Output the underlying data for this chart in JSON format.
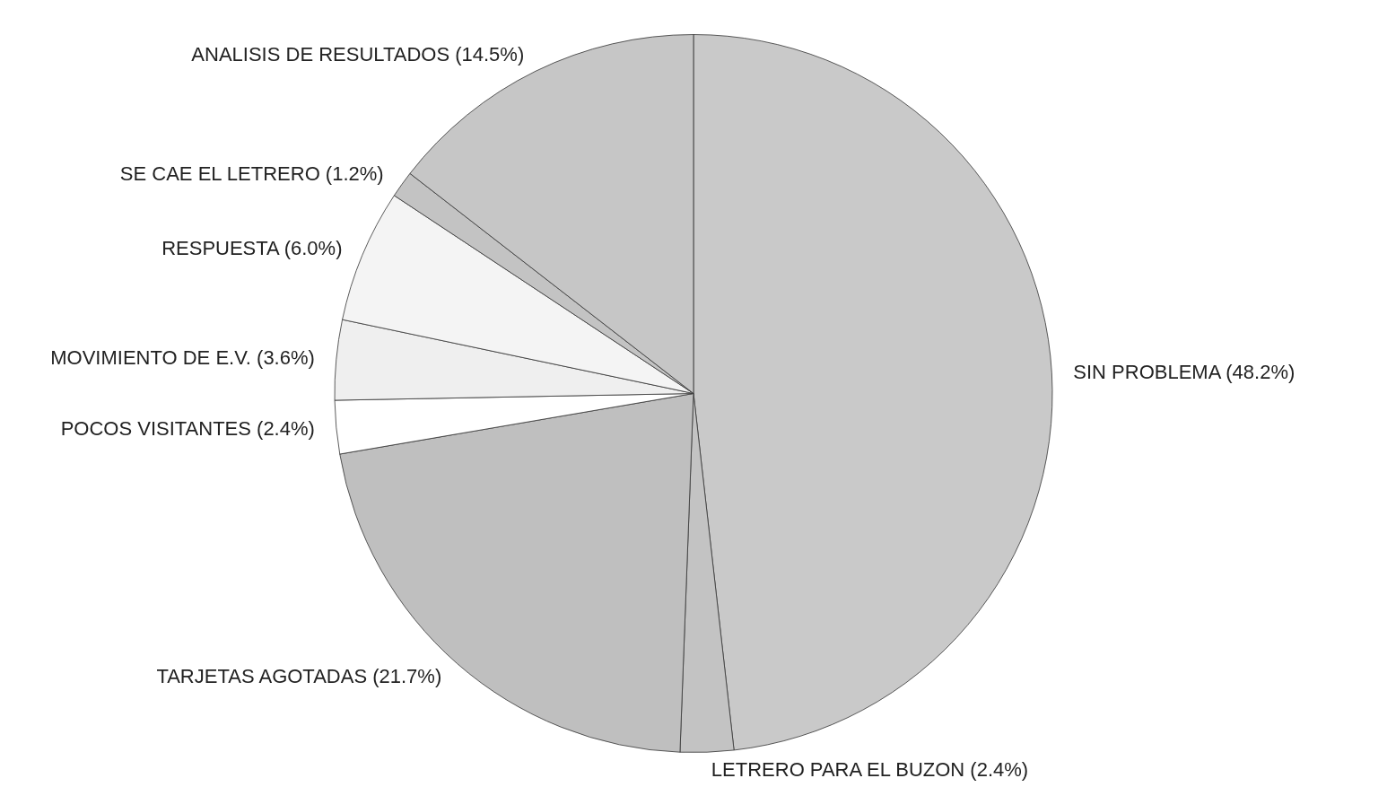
{
  "chart_data": {
    "type": "pie",
    "categories": [
      "SIN PROBLEMA (48.2%)",
      "LETRERO PARA EL BUZON (2.4%)",
      "TARJETAS AGOTADAS (21.7%)",
      "POCOS VISITANTES (2.4%)",
      "MOVIMIENTO DE E.V. (3.6%)",
      "RESPUESTA (6.0%)",
      "SE CAE EL LETRERO (1.2%)",
      "ANALISIS DE RESULTADOS (14.5%)"
    ],
    "values": [
      48.2,
      2.4,
      21.7,
      2.4,
      3.6,
      6.0,
      1.2,
      14.5
    ],
    "colors": [
      "#c9c9c9",
      "#c3c3c3",
      "#bfbfbf",
      "#ffffff",
      "#efefef",
      "#f4f4f4",
      "#c3c3c3",
      "#c6c6c6"
    ]
  }
}
